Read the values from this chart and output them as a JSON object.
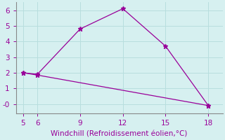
{
  "xlabel": "Windchill (Refroidissement éolien,°C)",
  "bg_color": "#d6f0f0",
  "line_color": "#990099",
  "series1_x": [
    5,
    6,
    9,
    12,
    15,
    18
  ],
  "series1_y": [
    2.0,
    1.9,
    4.8,
    6.1,
    3.7,
    -0.1
  ],
  "series2_x": [
    5,
    6,
    18
  ],
  "series2_y": [
    2.0,
    1.85,
    -0.1
  ],
  "xlim": [
    4.5,
    19.0
  ],
  "ylim": [
    -0.6,
    6.5
  ],
  "xticks": [
    5,
    6,
    9,
    12,
    15,
    18
  ],
  "yticks": [
    0,
    1,
    2,
    3,
    4,
    5,
    6
  ],
  "ytick_labels": [
    "-0",
    "1",
    "2",
    "3",
    "4",
    "5",
    "6"
  ],
  "grid_color": "#b8dede",
  "spine_color": "#888888",
  "font_color": "#990099",
  "tick_font_size": 7.5,
  "xlabel_font_size": 7.5
}
